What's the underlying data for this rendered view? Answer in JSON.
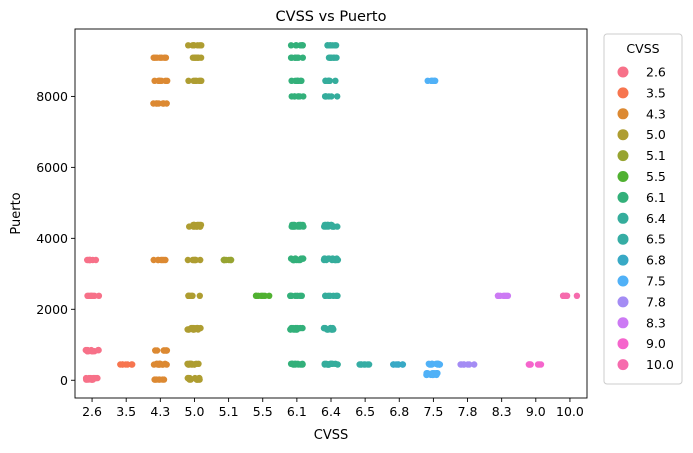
{
  "chart_data": {
    "type": "scatter",
    "title": "CVSS vs Puerto",
    "xlabel": "CVSS",
    "ylabel": "Puerto",
    "categories": [
      "2.6",
      "3.5",
      "4.3",
      "5.0",
      "5.1",
      "5.5",
      "6.1",
      "6.4",
      "6.5",
      "6.8",
      "7.5",
      "7.8",
      "8.3",
      "9.0",
      "10.0"
    ],
    "ylim": [
      -500,
      9900
    ],
    "yticks": [
      0,
      2000,
      4000,
      6000,
      8000
    ],
    "ytick_labels": [
      "0",
      "2000",
      "4000",
      "6000",
      "8000"
    ],
    "grid": false,
    "legend": {
      "title": "CVSS",
      "placement": "outside-right",
      "entries": [
        "2.6",
        "3.5",
        "4.3",
        "5.0",
        "5.1",
        "5.5",
        "6.1",
        "6.4",
        "6.5",
        "6.8",
        "7.5",
        "7.8",
        "8.3",
        "9.0",
        "10.0"
      ]
    },
    "colors": [
      "#f77189",
      "#f7754f",
      "#dc8932",
      "#ae9d31",
      "#97a431",
      "#50b131",
      "#33b07a",
      "#35ad9c",
      "#36ada4",
      "#38a9c5",
      "#50b1f7",
      "#a48cf4",
      "#cc7af4",
      "#f565cc",
      "#f66bad"
    ],
    "series": [
      {
        "category": "2.6",
        "points": [
          [
            2.6,
            20
          ],
          [
            2.6,
            60
          ],
          [
            2.6,
            820
          ],
          [
            2.6,
            850
          ],
          [
            2.6,
            2380
          ],
          [
            2.6,
            3390
          ]
        ]
      },
      {
        "category": "3.5",
        "points": [
          [
            3.5,
            445
          ]
        ]
      },
      {
        "category": "4.3",
        "points": [
          [
            4.3,
            20
          ],
          [
            4.3,
            440
          ],
          [
            4.3,
            465
          ],
          [
            4.3,
            840
          ],
          [
            4.3,
            3390
          ],
          [
            4.3,
            7800
          ],
          [
            4.3,
            8440
          ],
          [
            4.3,
            9090
          ]
        ]
      },
      {
        "category": "5.0",
        "points": [
          [
            5.0,
            20
          ],
          [
            5.0,
            60
          ],
          [
            5.0,
            445
          ],
          [
            5.0,
            465
          ],
          [
            5.0,
            1430
          ],
          [
            5.0,
            1470
          ],
          [
            5.0,
            2380
          ],
          [
            5.0,
            3390
          ],
          [
            5.0,
            4330
          ],
          [
            5.0,
            4380
          ],
          [
            5.0,
            8440
          ],
          [
            5.0,
            9090
          ],
          [
            5.0,
            9440
          ]
        ]
      },
      {
        "category": "5.1",
        "points": [
          [
            5.1,
            3390
          ]
        ]
      },
      {
        "category": "5.5",
        "points": [
          [
            5.5,
            2380
          ]
        ]
      },
      {
        "category": "6.1",
        "points": [
          [
            6.1,
            445
          ],
          [
            6.1,
            465
          ],
          [
            6.1,
            1430
          ],
          [
            6.1,
            1470
          ],
          [
            6.1,
            2380
          ],
          [
            6.1,
            3390
          ],
          [
            6.1,
            3430
          ],
          [
            6.1,
            4330
          ],
          [
            6.1,
            4380
          ],
          [
            6.1,
            8000
          ],
          [
            6.1,
            8440
          ],
          [
            6.1,
            9090
          ],
          [
            6.1,
            9440
          ]
        ]
      },
      {
        "category": "6.4",
        "points": [
          [
            6.4,
            445
          ],
          [
            6.4,
            465
          ],
          [
            6.4,
            1430
          ],
          [
            6.4,
            1470
          ],
          [
            6.4,
            2380
          ],
          [
            6.4,
            3390
          ],
          [
            6.4,
            3430
          ],
          [
            6.4,
            4330
          ],
          [
            6.4,
            4380
          ],
          [
            6.4,
            8000
          ],
          [
            6.4,
            8440
          ],
          [
            6.4,
            9090
          ],
          [
            6.4,
            9440
          ]
        ]
      },
      {
        "category": "6.5",
        "points": [
          [
            6.5,
            445
          ]
        ]
      },
      {
        "category": "6.8",
        "points": [
          [
            6.8,
            445
          ]
        ]
      },
      {
        "category": "7.5",
        "points": [
          [
            7.5,
            150
          ],
          [
            7.5,
            200
          ],
          [
            7.5,
            445
          ],
          [
            7.5,
            465
          ],
          [
            7.5,
            8440
          ]
        ]
      },
      {
        "category": "7.8",
        "points": [
          [
            7.8,
            445
          ]
        ]
      },
      {
        "category": "8.3",
        "points": [
          [
            8.3,
            2380
          ]
        ]
      },
      {
        "category": "9.0",
        "points": [
          [
            9.0,
            445
          ]
        ]
      },
      {
        "category": "10.0",
        "points": [
          [
            10.0,
            2380
          ]
        ]
      }
    ]
  }
}
